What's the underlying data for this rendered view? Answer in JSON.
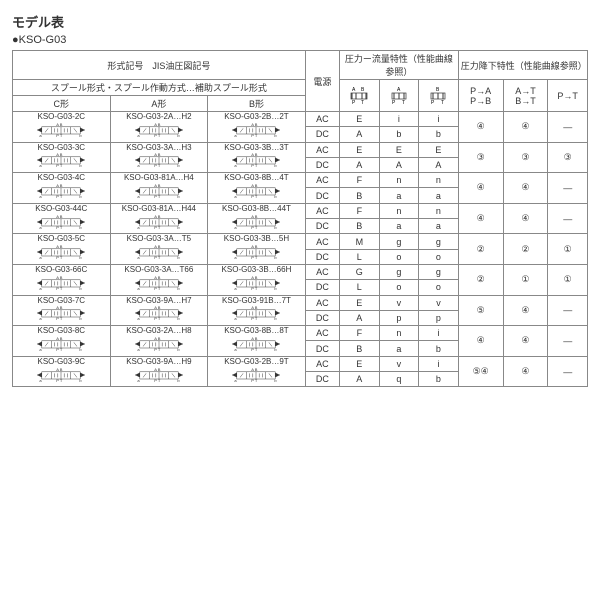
{
  "title": "モデル表",
  "subtitle": "●KSO-G03",
  "headers": {
    "model_jis": "形式記号　JIS油圧図記号",
    "spool_row": "スプール形式・スプール作動方式…補助スプール形式",
    "c_shape": "C形",
    "a_shape": "A形",
    "b_shape": "B形",
    "power": "電源",
    "pressure_flow": "圧力ー流量特性（性能曲線参照）",
    "pressure_drop": "圧力降下特性（性能曲線参照）",
    "pa_pb": "P→A\nP→B",
    "at_bt": "A→T\nB→T",
    "pt": "P→T",
    "ab_pt": "A B\nP T",
    "a_pt": "A\nP T",
    "b_pt": "B\nP T"
  },
  "rows": [
    {
      "c": "KSO-G03-2C",
      "a": "KSO-G03-2A…H2",
      "b": "KSO-G03-2B…2T",
      "ac": {
        "c1": "E",
        "c2": "i",
        "c3": "i"
      },
      "dc": {
        "c1": "A",
        "c2": "b",
        "c3": "b"
      },
      "d1": "④",
      "d2": "④",
      "d3": "—"
    },
    {
      "c": "KSO-G03-3C",
      "a": "KSO-G03-3A…H3",
      "b": "KSO-G03-3B…3T",
      "ac": {
        "c1": "E",
        "c2": "E",
        "c3": "E"
      },
      "dc": {
        "c1": "A",
        "c2": "A",
        "c3": "A"
      },
      "d1": "③",
      "d2": "③",
      "d3": "③"
    },
    {
      "c": "KSO-G03-4C",
      "a": "KSO-G03-81A…H4",
      "b": "KSO-G03-8B…4T",
      "ac": {
        "c1": "F",
        "c2": "n",
        "c3": "n"
      },
      "dc": {
        "c1": "B",
        "c2": "a",
        "c3": "a"
      },
      "d1": "④",
      "d2": "④",
      "d3": "—"
    },
    {
      "c": "KSO-G03-44C",
      "a": "KSO-G03-81A…H44",
      "b": "KSO-G03-8B…44T",
      "ac": {
        "c1": "F",
        "c2": "n",
        "c3": "n"
      },
      "dc": {
        "c1": "B",
        "c2": "a",
        "c3": "a"
      },
      "d1": "④",
      "d2": "④",
      "d3": "—"
    },
    {
      "c": "KSO-G03-5C",
      "a": "KSO-G03-3A…T5",
      "b": "KSO-G03-3B…5H",
      "ac": {
        "c1": "M",
        "c2": "g",
        "c3": "g"
      },
      "dc": {
        "c1": "L",
        "c2": "o",
        "c3": "o"
      },
      "d1": "②",
      "d2": "②",
      "d3": "①"
    },
    {
      "c": "KSO-G03-66C",
      "a": "KSO-G03-3A…T66",
      "b": "KSO-G03-3B…66H",
      "ac": {
        "c1": "G",
        "c2": "g",
        "c3": "g"
      },
      "dc": {
        "c1": "L",
        "c2": "o",
        "c3": "o"
      },
      "d1": "②",
      "d2": "①",
      "d3": "①"
    },
    {
      "c": "KSO-G03-7C",
      "a": "KSO-G03-9A…H7",
      "b": "KSO-G03-91B…7T",
      "ac": {
        "c1": "E",
        "c2": "v",
        "c3": "v"
      },
      "dc": {
        "c1": "A",
        "c2": "p",
        "c3": "p"
      },
      "d1": "⑤",
      "d2": "④",
      "d3": "—"
    },
    {
      "c": "KSO-G03-8C",
      "a": "KSO-G03-2A…H8",
      "b": "KSO-G03-8B…8T",
      "ac": {
        "c1": "F",
        "c2": "n",
        "c3": "i"
      },
      "dc": {
        "c1": "B",
        "c2": "a",
        "c3": "b"
      },
      "d1": "④",
      "d2": "④",
      "d3": "—"
    },
    {
      "c": "KSO-G03-9C",
      "a": "KSO-G03-9A…H9",
      "b": "KSO-G03-2B…9T",
      "ac": {
        "c1": "E",
        "c2": "v",
        "c3": "i"
      },
      "dc": {
        "c1": "A",
        "c2": "q",
        "c3": "b"
      },
      "d1": "⑤④",
      "d2": "④",
      "d3": "—"
    }
  ],
  "ac_label": "AC",
  "dc_label": "DC"
}
